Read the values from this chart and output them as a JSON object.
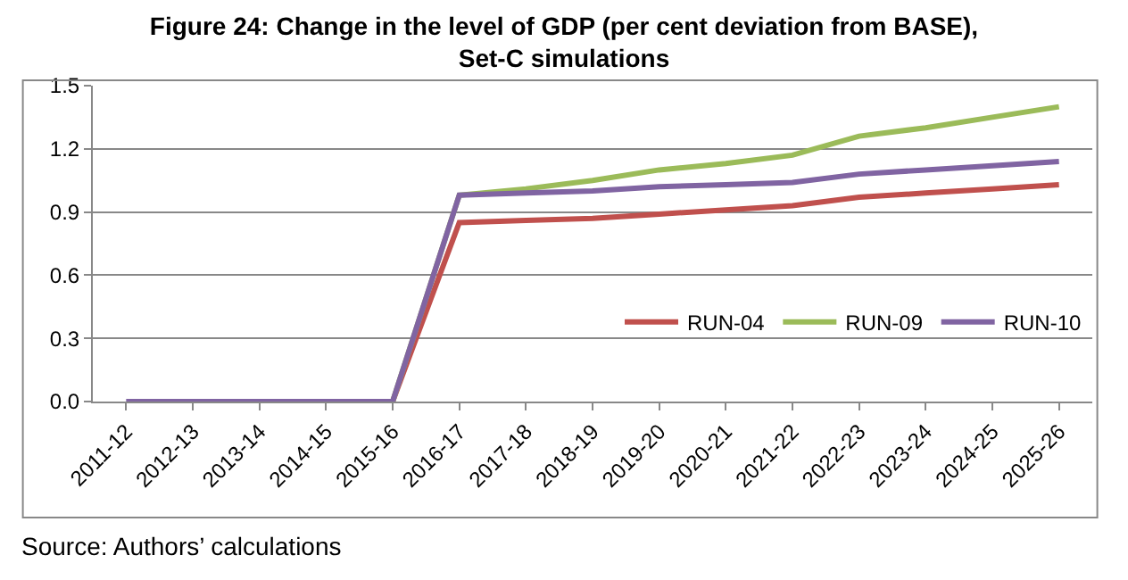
{
  "chart_data": {
    "type": "line",
    "title": "Figure 24: Change in the level of GDP (per cent deviation from BASE),\nSet-C simulations",
    "categories": [
      "2011-12",
      "2012-13",
      "2013-14",
      "2014-15",
      "2015-16",
      "2016-17",
      "2017-18",
      "2018-19",
      "2019-20",
      "2020-21",
      "2021-22",
      "2022-23",
      "2023-24",
      "2024-25",
      "2025-26"
    ],
    "series": [
      {
        "name": "RUN-04",
        "color": "#c0504d",
        "values": [
          null,
          null,
          null,
          null,
          0,
          0.85,
          0.86,
          0.87,
          0.89,
          0.91,
          0.93,
          0.97,
          0.99,
          1.01,
          1.03
        ]
      },
      {
        "name": "RUN-09",
        "color": "#9bbb59",
        "values": [
          null,
          null,
          null,
          null,
          0,
          0.98,
          1.01,
          1.05,
          1.1,
          1.13,
          1.17,
          1.26,
          1.3,
          1.35,
          1.4
        ]
      },
      {
        "name": "RUN-10",
        "color": "#8064a2",
        "values": [
          0,
          0,
          0,
          0,
          0,
          0.98,
          0.99,
          1.0,
          1.02,
          1.03,
          1.04,
          1.08,
          1.1,
          1.12,
          1.14
        ]
      }
    ],
    "ylim": [
      0,
      1.5
    ],
    "yticks": [
      {
        "value": 0,
        "label": "0.0"
      },
      {
        "value": 0.3,
        "label": "0.3"
      },
      {
        "value": 0.6,
        "label": "0.6"
      },
      {
        "value": 0.9,
        "label": "0.9"
      },
      {
        "value": 1.2,
        "label": "1.2"
      },
      {
        "value": 1.5,
        "label": "1.5"
      }
    ],
    "grid": "y",
    "legend": "bottom right",
    "marker": "none",
    "line_style": "solid",
    "annotations": [
      "Source: Authors’ calculations"
    ]
  }
}
